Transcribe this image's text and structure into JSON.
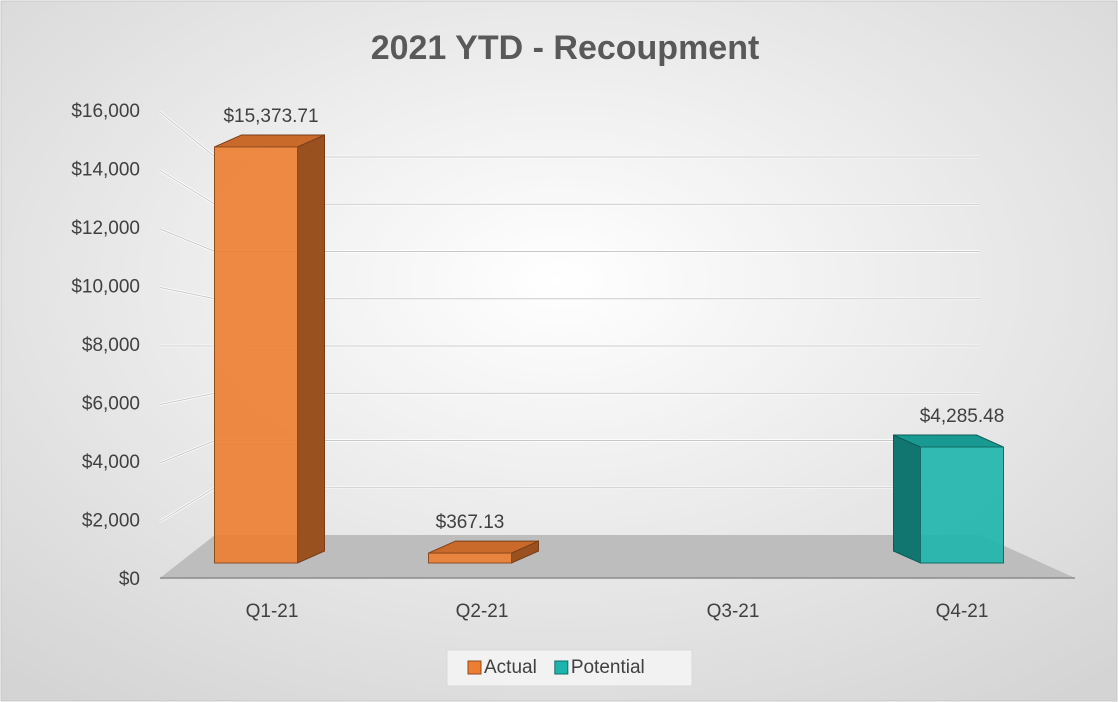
{
  "chart_data": {
    "type": "bar3d",
    "title": "2021 YTD - Recoupment",
    "categories": [
      "Q1-21",
      "Q2-21",
      "Q3-21",
      "Q4-21"
    ],
    "series": [
      {
        "name": "Actual",
        "color": "#ED7D31",
        "values": [
          15373.71,
          367.13,
          null,
          null
        ],
        "value_labels": [
          "$15,373.71",
          "$367.13",
          null,
          null
        ]
      },
      {
        "name": "Potential",
        "color": "#1CB5AC",
        "values": [
          null,
          null,
          null,
          4285.48
        ],
        "value_labels": [
          null,
          null,
          null,
          "$4,285.48"
        ]
      }
    ],
    "ylim": [
      0,
      16000
    ],
    "yticks": [
      {
        "value": 0,
        "label": "$0"
      },
      {
        "value": 2000,
        "label": "$2,000"
      },
      {
        "value": 4000,
        "label": "$4,000"
      },
      {
        "value": 6000,
        "label": "$6,000"
      },
      {
        "value": 8000,
        "label": "$8,000"
      },
      {
        "value": 10000,
        "label": "$10,000"
      },
      {
        "value": 12000,
        "label": "$12,000"
      },
      {
        "value": 14000,
        "label": "$14,000"
      },
      {
        "value": 16000,
        "label": "$16,000"
      }
    ],
    "grid": true,
    "legend": "bottom"
  }
}
